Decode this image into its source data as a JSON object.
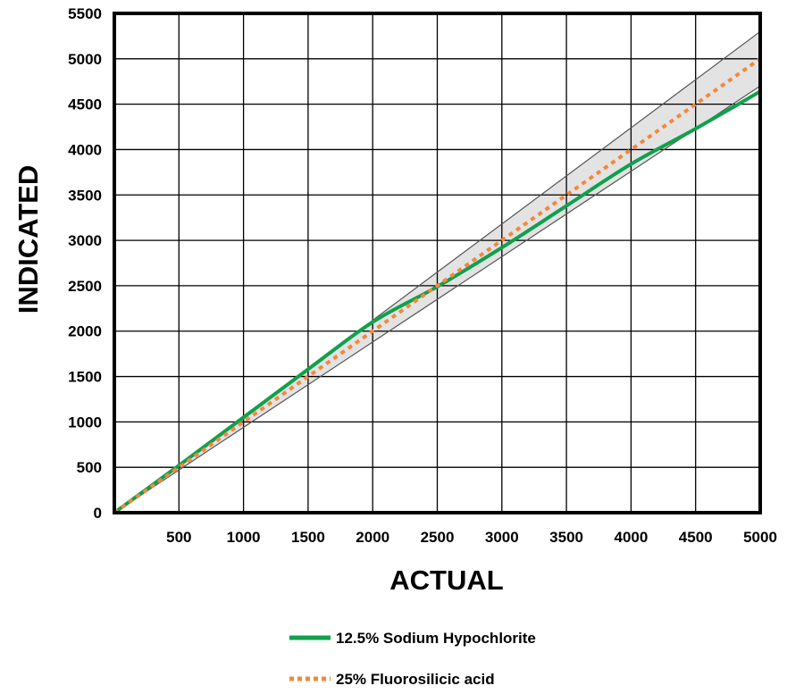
{
  "chart_data": {
    "type": "line",
    "title": "",
    "xlabel": "ACTUAL",
    "ylabel": "INDICATED",
    "xlim": [
      0,
      5000
    ],
    "ylim": [
      0,
      5500
    ],
    "xticks": [
      500,
      1000,
      1500,
      2000,
      2500,
      3000,
      3500,
      4000,
      4500,
      5000
    ],
    "xtick_labels": [
      "500",
      "1000",
      "1500",
      "2000",
      "2500",
      "3000",
      "3500",
      "4000",
      "4500",
      "5000"
    ],
    "yticks": [
      0,
      500,
      1000,
      1500,
      2000,
      2500,
      3000,
      3500,
      4000,
      4500,
      5000,
      5500
    ],
    "ytick_labels": [
      "0",
      "500",
      "1000",
      "1500",
      "2000",
      "2500",
      "3000",
      "3500",
      "4000",
      "4500",
      "5000",
      "5500"
    ],
    "grid": true,
    "legend_position": "bottom-center",
    "band": {
      "upper": {
        "x": [
          0,
          5000
        ],
        "y": [
          0,
          5300
        ]
      },
      "lower": {
        "x": [
          0,
          5000
        ],
        "y": [
          0,
          4700
        ]
      },
      "fill_color": "#e3e3e3",
      "edge_color": "#555555"
    },
    "series": [
      {
        "name": "12.5% Sodium Hypochlorite",
        "style": "solid",
        "color": "#0fa14b",
        "x": [
          0,
          500,
          1000,
          1500,
          2000,
          2500,
          3000,
          3500,
          4000,
          4500,
          5000
        ],
        "y": [
          0,
          520,
          1050,
          1580,
          2100,
          2490,
          2920,
          3380,
          3840,
          4230,
          4640
        ]
      },
      {
        "name": "25% Fluorosilicic acid",
        "style": "dotted",
        "color": "#f5873b",
        "x": [
          0,
          500,
          1000,
          1500,
          2000,
          2500,
          3000,
          3500,
          4000,
          4500,
          5000
        ],
        "y": [
          0,
          500,
          1000,
          1500,
          2000,
          2500,
          3000,
          3500,
          4000,
          4500,
          5000
        ]
      }
    ]
  }
}
